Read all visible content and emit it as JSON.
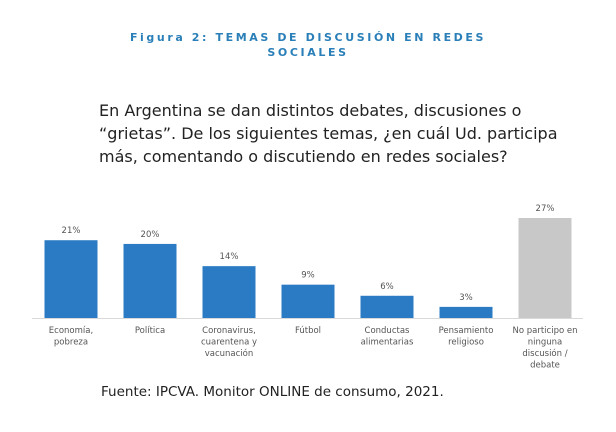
{
  "figure_title_line1": "Figura 2: TEMAS DE DISCUSIÓN EN REDES",
  "figure_title_line2": "SOCIALES",
  "question": "En Argentina se dan distintos debates, discusiones o “grietas”. De los siguientes temas, ¿en cuál Ud. participa más, comentando o discutiendo en redes sociales?",
  "source": "Fuente: IPCVA. Monitor ONLINE de consumo, 2021.",
  "colors": {
    "primary": "#2b7bc4",
    "neutral": "#c8c8c8",
    "title": "#2a7fb8"
  },
  "chart_data": {
    "type": "bar",
    "categories": [
      [
        "Economía,",
        "pobreza"
      ],
      [
        "Política"
      ],
      [
        "Coronavirus,",
        "cuarentena y",
        "vacunación"
      ],
      [
        "Fútbol"
      ],
      [
        "Conductas",
        "alimentarias"
      ],
      [
        "Pensamiento",
        "religioso"
      ],
      [
        "No participo en",
        "ninguna",
        "discusión /",
        "debate"
      ]
    ],
    "values": [
      21,
      20,
      14,
      9,
      6,
      3,
      27
    ],
    "value_labels": [
      "21%",
      "20%",
      "14%",
      "9%",
      "6%",
      "3%",
      "27%"
    ],
    "bar_colors": [
      "#2b7bc4",
      "#2b7bc4",
      "#2b7bc4",
      "#2b7bc4",
      "#2b7bc4",
      "#2b7bc4",
      "#c8c8c8"
    ],
    "ylim": [
      0,
      27
    ],
    "grid": false
  }
}
